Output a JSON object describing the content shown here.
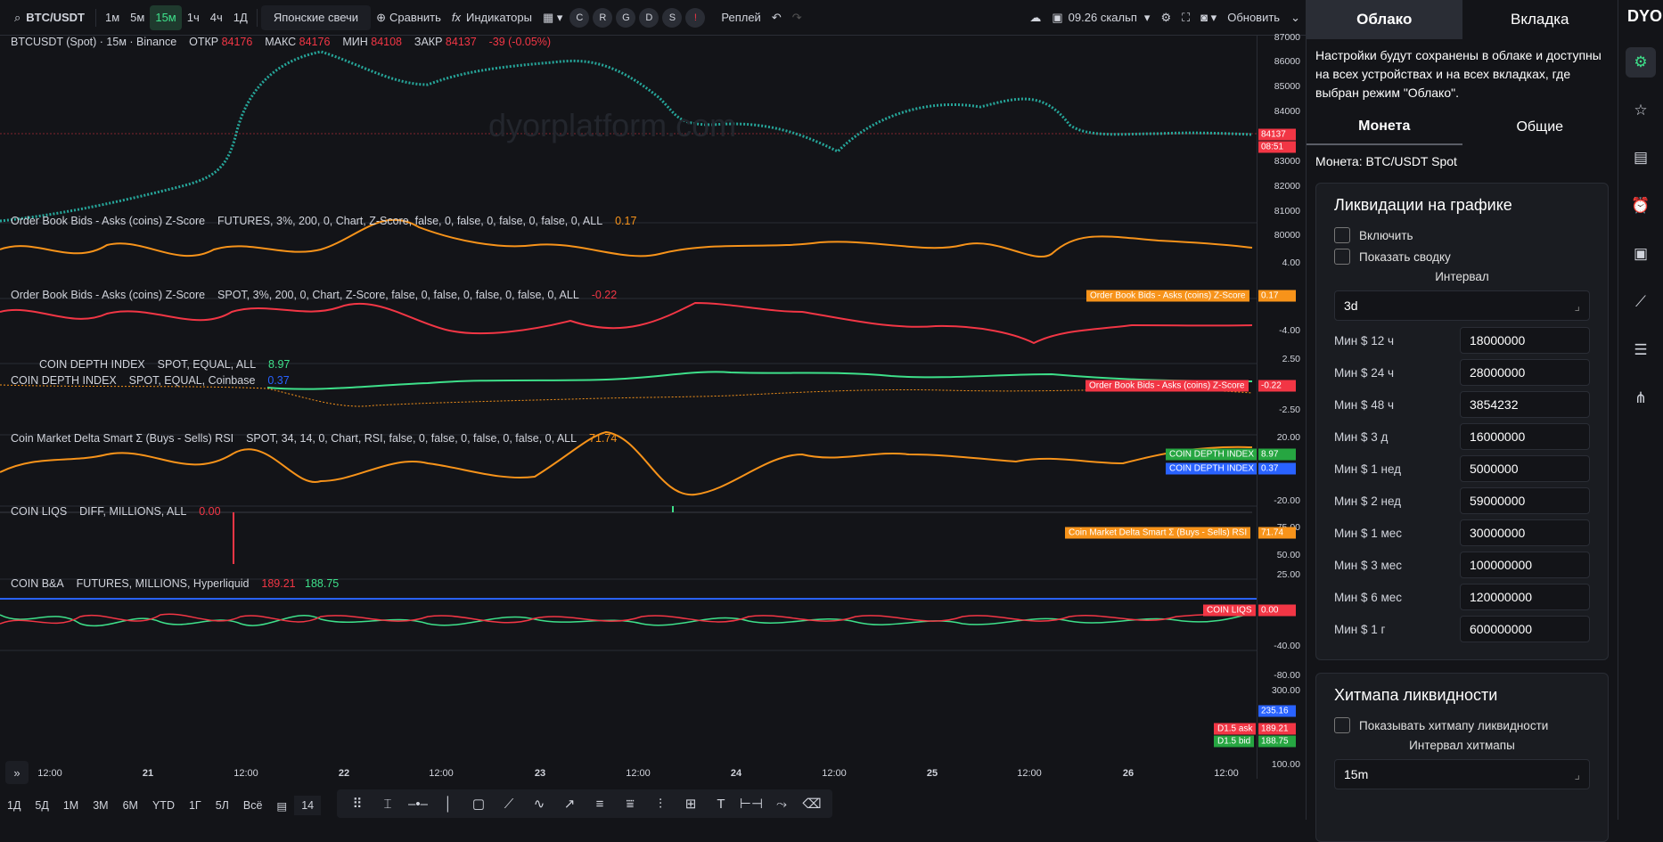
{
  "topbar": {
    "symbol": "BTC/USDT",
    "timeframes": [
      "1м",
      "5м",
      "15м",
      "1ч",
      "4ч",
      "1Д"
    ],
    "active_timeframe": "15м",
    "chart_type": "Японские свечи",
    "compare": "Сравнить",
    "indicators": "Индикаторы",
    "letters": [
      "C",
      "R",
      "G",
      "D",
      "S",
      "!"
    ],
    "replay": "Реплей",
    "layout_name": "09.26 скальп",
    "update": "Обновить"
  },
  "main_legend": {
    "title": "BTCUSDT (Spot) · 15м · Binance",
    "open_label": "ОТКР",
    "open": "84176",
    "high_label": "МАКС",
    "high": "84176",
    "low_label": "МИН",
    "low": "84108",
    "close_label": "ЗАКР",
    "close": "84137",
    "change": "-39 (-0.05%)",
    "price_tag": "84137",
    "timer_tag": "08:51",
    "watermark": "dyorplatform.com",
    "axis": [
      "87000",
      "86000",
      "85000",
      "84000",
      "83000",
      "82000",
      "81000",
      "80000"
    ]
  },
  "panes": [
    {
      "name": "Order Book Bids - Asks (coins) Z-Score",
      "params": "FUTURES, 3%, 200, 0, Chart, Z-Score, false, 0, false, 0, false, 0, false, 0, ALL",
      "value": "0.17",
      "tag": "Order Book Bids - Asks (coins) Z-Score",
      "axis": [
        "4.00",
        "-4.00"
      ]
    },
    {
      "name": "Order Book Bids - Asks (coins) Z-Score",
      "params": "SPOT, 3%, 200, 0, Chart, Z-Score, false, 0, false, 0, false, 0, false, 0, ALL",
      "value": "-0.22",
      "tag": "Order Book Bids - Asks (coins) Z-Score",
      "axis": [
        "2.50",
        "-2.50"
      ]
    },
    {
      "name": "COIN DEPTH INDEX",
      "params": "SPOT, EQUAL, ALL",
      "value": "8.97",
      "name2": "COIN DEPTH INDEX",
      "params2": "SPOT, EQUAL, Coinbase",
      "value2": "0.37",
      "tag": "COIN DEPTH INDEX",
      "tag2": "COIN DEPTH INDEX",
      "axis": [
        "20.00",
        "-20.00"
      ]
    },
    {
      "name": "Coin Market Delta Smart Σ (Buys - Sells) RSI",
      "params": "SPOT, 34, 14, 0, Chart, RSI, false, 0, false, 0, false, 0, false, 0, ALL",
      "value": "71.74",
      "tag": "Coin Market Delta Smart Σ (Buys - Sells) RSI",
      "axis": [
        "75.00",
        "50.00",
        "25.00"
      ]
    },
    {
      "name": "COIN LIQS",
      "params": "DIFF, MILLIONS, ALL",
      "value": "0.00",
      "tag": "COIN LIQS",
      "axis": [
        "-40.00",
        "-80.00"
      ]
    },
    {
      "name": "COIN B&A",
      "params": "FUTURES, MILLIONS, Hyperliquid",
      "value": "189.21",
      "value2": "188.75",
      "tag_blue": "235.16",
      "tag_ask": "D1.5 ask",
      "tag_bid": "D1.5 bid",
      "axis": [
        "300.00",
        "100.00"
      ]
    }
  ],
  "timeaxis": [
    "12:00",
    "21",
    "12:00",
    "22",
    "12:00",
    "23",
    "12:00",
    "24",
    "12:00",
    "25",
    "12:00",
    "26",
    "12:00"
  ],
  "bottombar": {
    "ranges": [
      "1Д",
      "5Д",
      "1М",
      "3М",
      "6М",
      "YTD",
      "1Г",
      "5Л",
      "Всё"
    ],
    "number": "14"
  },
  "panel": {
    "tab_cloud": "Облако",
    "tab_tab": "Вкладка",
    "note": "Настройки будут сохранены в облаке и доступны на всех устройствах и на всех вкладках, где выбран режим \"Облако\".",
    "subtab_coin": "Монета",
    "subtab_common": "Общие",
    "coin": "Монета: BTC/USDT Spot",
    "liq_title": "Ликвидации на графике",
    "enable": "Включить",
    "summary": "Показать сводку",
    "interval_label": "Интервал",
    "interval": "3d",
    "rows": [
      {
        "k": "Мин $ 12 ч",
        "v": "18000000"
      },
      {
        "k": "Мин $ 24 ч",
        "v": "28000000"
      },
      {
        "k": "Мин $ 48 ч",
        "v": "3854232"
      },
      {
        "k": "Мин $ 3 д",
        "v": "16000000"
      },
      {
        "k": "Мин $ 1 нед",
        "v": "5000000"
      },
      {
        "k": "Мин $ 2 нед",
        "v": "59000000"
      },
      {
        "k": "Мин $ 1 мес",
        "v": "30000000"
      },
      {
        "k": "Мин $ 3 мес",
        "v": "100000000"
      },
      {
        "k": "Мин $ 6 мес",
        "v": "120000000"
      },
      {
        "k": "Мин $ 1 г",
        "v": "600000000"
      }
    ],
    "heat_title": "Хитмапа ликвидности",
    "heat_show": "Показывать хитмапу ликвидности",
    "heat_interval_label": "Интервал хитмапы",
    "heat_interval": "15m"
  },
  "iconbar": {
    "logo": "DYOR"
  }
}
